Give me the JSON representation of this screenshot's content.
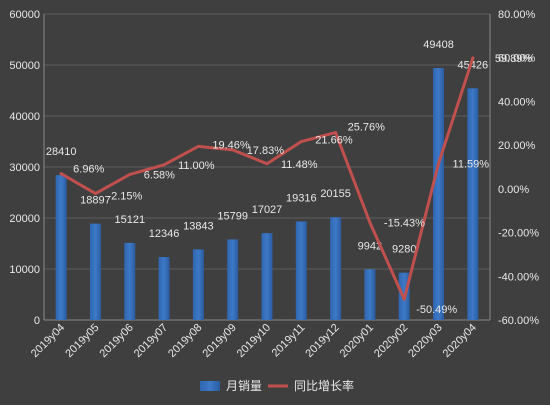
{
  "chart_data": {
    "type": "bar",
    "categories": [
      "2019y04",
      "2019y05",
      "2019y06",
      "2019y07",
      "2019y08",
      "2019y09",
      "2019y10",
      "2019y11",
      "2019y12",
      "2020y01",
      "2020y02",
      "2020y03",
      "2020y04"
    ],
    "series": [
      {
        "name": "月销量",
        "type": "bar",
        "axis": "left",
        "color": "#3d79c6",
        "values": [
          28410,
          18897,
          15121,
          12346,
          13843,
          15799,
          17027,
          19316,
          20155,
          9942,
          9280,
          49408,
          45426
        ]
      },
      {
        "name": "同比增长率",
        "type": "line",
        "axis": "right",
        "color": "#c0504d",
        "values": [
          6.96,
          -2.15,
          6.58,
          11.0,
          19.46,
          17.83,
          11.48,
          21.66,
          25.76,
          -15.43,
          -50.49,
          11.59,
          59.89
        ],
        "labels": [
          "6.96%",
          "-2.15%",
          "6.58%",
          "11.00%",
          "19.46%",
          "17.83%",
          "11.48%",
          "21.66%",
          "25.76%",
          "-15.43%",
          "-50.49%",
          "11.59%",
          "59.89%"
        ]
      }
    ],
    "y_left": {
      "ylim": [
        0,
        60000
      ],
      "ticks": [
        0,
        10000,
        20000,
        30000,
        40000,
        50000,
        60000
      ],
      "tick_labels": [
        "0",
        "10000",
        "20000",
        "30000",
        "40000",
        "50000",
        "60000"
      ]
    },
    "y_right": {
      "ylim": [
        -60,
        80
      ],
      "ticks": [
        -60,
        -40,
        -20,
        0,
        20,
        40,
        60,
        80
      ],
      "tick_labels": [
        "-60.00%",
        "-40.00%",
        "-20.00%",
        "0.00%",
        "20.00%",
        "40.00%",
        "60.00%",
        "80.00%"
      ]
    },
    "grid": true,
    "legend_position": "bottom",
    "colors": {
      "background": "#3f3f3f",
      "text": "#e8e8e8",
      "grid": "#5e5e5e"
    }
  }
}
